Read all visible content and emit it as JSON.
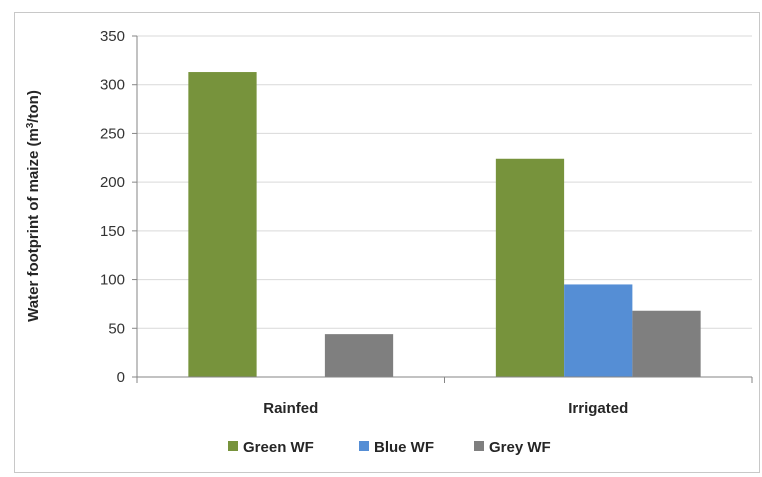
{
  "chart_data": {
    "type": "bar",
    "title": "",
    "xlabel": "",
    "ylabel": "Water footprint of maize (m³/ton)",
    "ylabel_parts": {
      "prefix": "Water footprint of maize (m",
      "superscript": "3",
      "suffix": "/ton)"
    },
    "categories": [
      "Rainfed",
      "Irrigated"
    ],
    "series": [
      {
        "name": "Green WF",
        "color": "#77933c",
        "values": [
          313,
          224
        ]
      },
      {
        "name": "Blue WF",
        "color": "#558ed5",
        "values": [
          0,
          95
        ]
      },
      {
        "name": "Grey WF",
        "color": "#7f7f7f",
        "values": [
          44,
          68
        ]
      }
    ],
    "ylim": [
      0,
      350
    ],
    "yticks": [
      0,
      50,
      100,
      150,
      200,
      250,
      300,
      350
    ],
    "grid": true,
    "legend_position": "bottom"
  }
}
